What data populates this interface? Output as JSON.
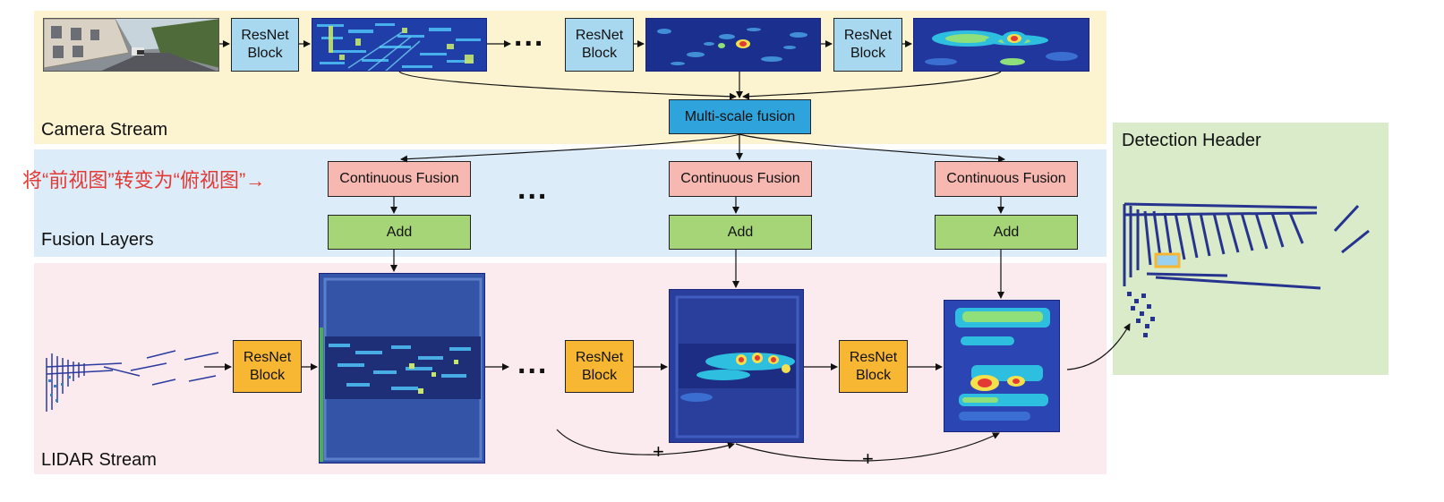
{
  "bands": {
    "camera": "Camera Stream",
    "fusion": "Fusion Layers",
    "lidar": "LIDAR Stream",
    "detection": "Detection Header"
  },
  "camera": {
    "resnet_1": "ResNet Block",
    "resnet_2": "ResNet Block",
    "resnet_3": "ResNet Block",
    "multi_scale_fusion": "Multi-scale fusion",
    "ellipsis": "..."
  },
  "fusion": {
    "continuous_fusion_1": "Continuous Fusion",
    "continuous_fusion_2": "Continuous Fusion",
    "continuous_fusion_3": "Continuous Fusion",
    "add_1": "Add",
    "add_2": "Add",
    "add_3": "Add",
    "ellipsis": "..."
  },
  "lidar": {
    "resnet_1": "ResNet Block",
    "resnet_2": "ResNet Block",
    "resnet_3": "ResNet Block",
    "ellipsis": "...",
    "plus_1": "+",
    "plus_2": "+"
  },
  "annotation": "将“前视图”转变为“俯视图”→",
  "colors": {
    "camera_band": "#fcf4d1",
    "fusion_band": "#dcecf8",
    "lidar_band": "#fbeaee",
    "detection_band": "#d9ebc9",
    "resnet_camera": "#a8d8f0",
    "resnet_lidar": "#f7b733",
    "continuous_fusion": "#f7b8b2",
    "add": "#a6d577",
    "multi_scale_fusion": "#2ea3dc",
    "annotation": "#e53935"
  }
}
